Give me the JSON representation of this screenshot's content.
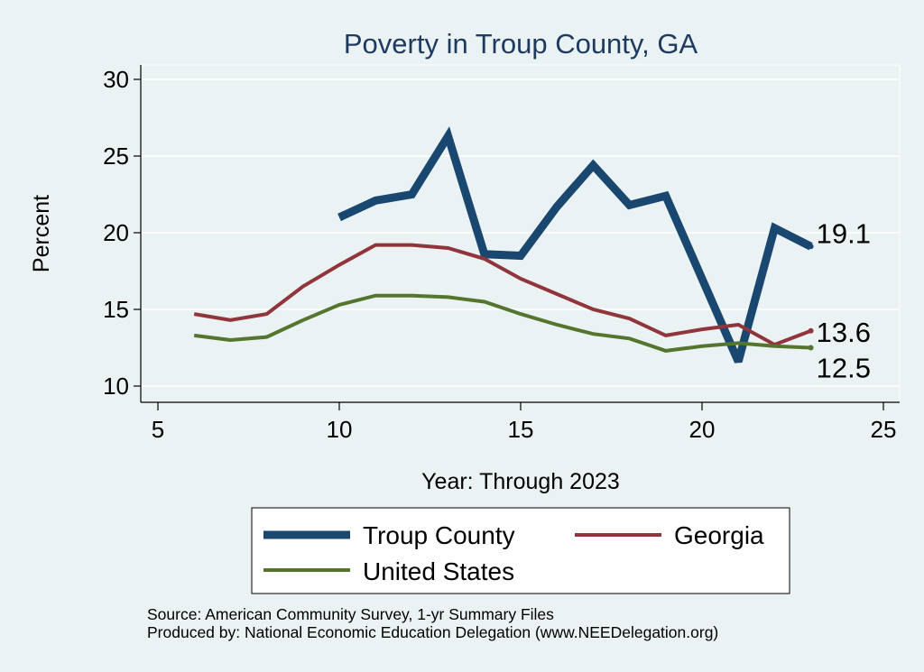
{
  "chart_data": {
    "type": "line",
    "title": "Poverty in Troup County, GA",
    "xlabel": "Year: Through 2023",
    "ylabel": "Percent",
    "xlim": [
      5,
      25
    ],
    "ylim": [
      10,
      30
    ],
    "xticks": [
      5,
      10,
      15,
      20,
      25
    ],
    "yticks": [
      10,
      15,
      20,
      25,
      30
    ],
    "grid": true,
    "legend_position": "bottom",
    "series": [
      {
        "name": "Troup County",
        "color": "#1a476f",
        "x": [
          10,
          11,
          12,
          13,
          14,
          15,
          16,
          17,
          18,
          19,
          20,
          21,
          22,
          23
        ],
        "values": [
          21.0,
          22.1,
          22.5,
          26.3,
          18.6,
          18.5,
          21.7,
          24.4,
          21.8,
          22.4,
          17.0,
          11.6,
          20.3,
          19.1
        ],
        "end_label": "19.1"
      },
      {
        "name": "Georgia",
        "color": "#90353b",
        "x": [
          6,
          7,
          8,
          9,
          10,
          11,
          12,
          13,
          14,
          15,
          16,
          17,
          18,
          19,
          20,
          21,
          22,
          23
        ],
        "values": [
          14.7,
          14.3,
          14.7,
          16.5,
          17.9,
          19.2,
          19.2,
          19.0,
          18.3,
          17.0,
          16.0,
          15.0,
          14.4,
          13.3,
          13.7,
          14.0,
          12.7,
          13.6
        ],
        "end_label": "13.6"
      },
      {
        "name": "United States",
        "color": "#55752f",
        "x": [
          6,
          7,
          8,
          9,
          10,
          11,
          12,
          13,
          14,
          15,
          16,
          17,
          18,
          19,
          20,
          21,
          22,
          23
        ],
        "values": [
          13.3,
          13.0,
          13.2,
          14.3,
          15.3,
          15.9,
          15.9,
          15.8,
          15.5,
          14.7,
          14.0,
          13.4,
          13.1,
          12.3,
          12.6,
          12.8,
          12.6,
          12.5
        ],
        "end_label": "12.5"
      }
    ],
    "notes": [
      "Source: American Community Survey, 1-yr Summary Files",
      "Produced by: National Economic Education Delegation (www.NEEDelegation.org)"
    ]
  }
}
